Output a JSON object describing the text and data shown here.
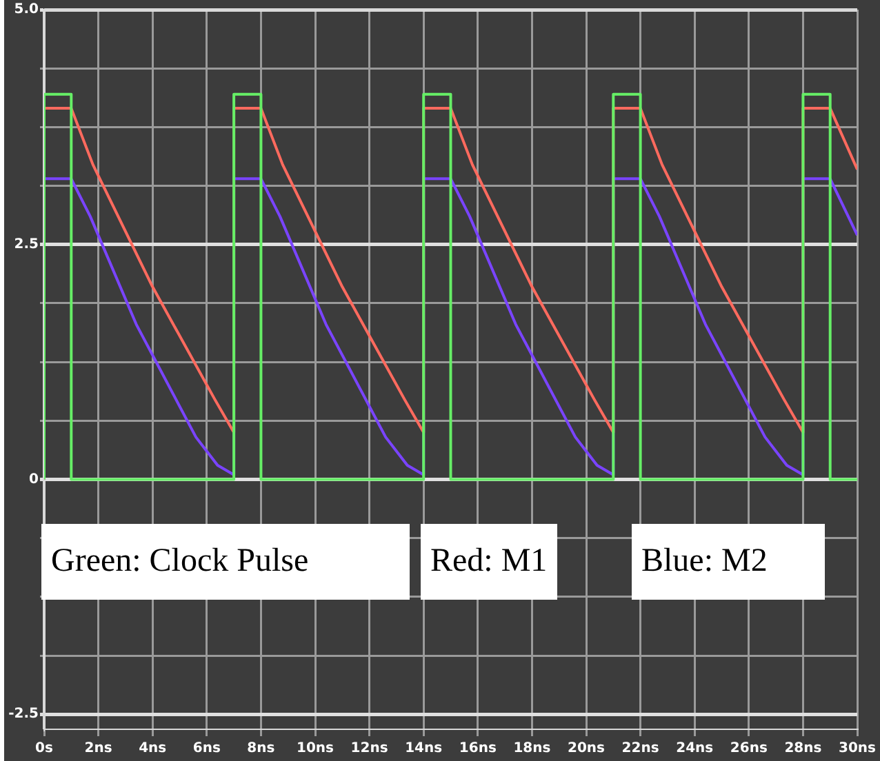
{
  "chart_data": {
    "type": "line",
    "xlim": [
      0,
      30
    ],
    "xticks": [
      {
        "value": 0,
        "label": "0s"
      },
      {
        "value": 2,
        "label": "2ns"
      },
      {
        "value": 4,
        "label": "4ns"
      },
      {
        "value": 6,
        "label": "6ns"
      },
      {
        "value": 8,
        "label": "8ns"
      },
      {
        "value": 10,
        "label": "10ns"
      },
      {
        "value": 12,
        "label": "12ns"
      },
      {
        "value": 14,
        "label": "14ns"
      },
      {
        "value": 16,
        "label": "16ns"
      },
      {
        "value": 18,
        "label": "18ns"
      },
      {
        "value": 20,
        "label": "20ns"
      },
      {
        "value": 22,
        "label": "22ns"
      },
      {
        "value": 24,
        "label": "24ns"
      },
      {
        "value": 26,
        "label": "26ns"
      },
      {
        "value": 28,
        "label": "28ns"
      },
      {
        "value": 30,
        "label": "30ns"
      }
    ],
    "ylim": [
      -2.66,
      5.0
    ],
    "yticks": [
      {
        "value": -2.5,
        "label": "-2.5"
      },
      {
        "value": -1.875,
        "label": null
      },
      {
        "value": -1.25,
        "label": null
      },
      {
        "value": -0.625,
        "label": null
      },
      0,
      {
        "value": 0.625,
        "label": null
      },
      {
        "value": 1.25,
        "label": null
      },
      {
        "value": 1.875,
        "label": null
      },
      {
        "value": 2.5,
        "label": "2.5"
      },
      {
        "value": 3.125,
        "label": null
      },
      {
        "value": 3.75,
        "label": null
      },
      {
        "value": 4.375,
        "label": null
      },
      {
        "value": 5,
        "label": "5.0"
      }
    ],
    "grid": true,
    "legend": false,
    "marker": "none",
    "line_style": "solid",
    "annotations": [
      "Green: Clock Pulse",
      "Red: M1",
      "Blue: M2"
    ],
    "series": [
      {
        "color": "#66ee66",
        "x": [
          0,
          0,
          1,
          1,
          7,
          7,
          8,
          8,
          14,
          14,
          15,
          15,
          21,
          21,
          22,
          22,
          28,
          28,
          29,
          29,
          30
        ],
        "values": [
          0,
          4.1,
          4.1,
          0,
          0,
          4.1,
          4.1,
          0,
          0,
          4.1,
          4.1,
          0,
          0,
          4.1,
          4.1,
          0,
          0,
          4.1,
          4.1,
          0,
          0
        ]
      },
      {
        "color": "#ff6a5e",
        "x": [
          0,
          0,
          1,
          1.8,
          4,
          6.3,
          7,
          7,
          8,
          8.8,
          11,
          13.3,
          14,
          14,
          15,
          15.8,
          18,
          20.3,
          21,
          21,
          22,
          22.8,
          25,
          27.3,
          28,
          28,
          29,
          30
        ],
        "values": [
          0,
          3.95,
          3.95,
          3.35,
          2.05,
          0.85,
          0.5,
          3.95,
          3.95,
          3.35,
          2.05,
          0.85,
          0.5,
          3.95,
          3.95,
          3.35,
          2.05,
          0.85,
          0.5,
          3.95,
          3.95,
          3.35,
          2.05,
          0.85,
          0.5,
          3.95,
          3.95,
          3.3
        ]
      },
      {
        "color": "#7a44ff",
        "x": [
          0,
          0,
          1,
          1.7,
          3.4,
          5.6,
          6.4,
          7,
          7,
          8,
          8.7,
          10.4,
          12.6,
          13.4,
          14,
          14,
          15,
          15.7,
          17.4,
          19.6,
          20.4,
          21,
          21,
          22,
          22.7,
          24.4,
          26.6,
          27.4,
          28,
          28,
          29,
          30
        ],
        "values": [
          0,
          3.2,
          3.2,
          2.8,
          1.65,
          0.45,
          0.15,
          0.05,
          3.2,
          3.2,
          2.8,
          1.65,
          0.45,
          0.15,
          0.05,
          3.2,
          3.2,
          2.8,
          1.65,
          0.45,
          0.15,
          0.05,
          3.2,
          3.2,
          2.8,
          1.65,
          0.45,
          0.15,
          0.05,
          3.2,
          3.2,
          2.6
        ]
      }
    ]
  }
}
